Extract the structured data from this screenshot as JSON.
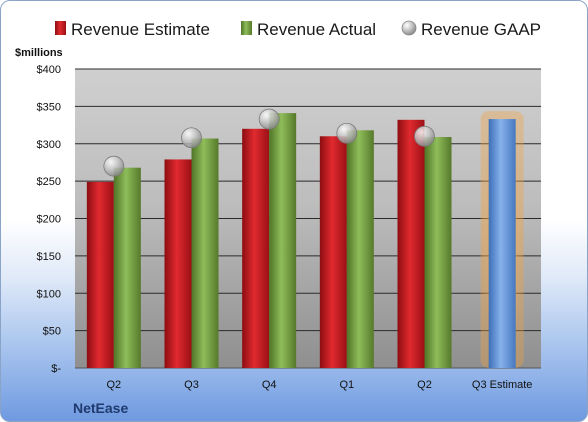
{
  "chart_data": {
    "type": "bar",
    "company": "NetEase",
    "unit_label": "$millions",
    "categories": [
      "Q2",
      "Q3",
      "Q4",
      "Q1",
      "Q2",
      "Q3 Estimate"
    ],
    "series": [
      {
        "name": "Revenue Estimate",
        "kind": "bar",
        "color": "#c8161d",
        "values": [
          249,
          279,
          320,
          310,
          332,
          null
        ]
      },
      {
        "name": "Revenue Actual",
        "kind": "bar",
        "color": "#6e9a3a",
        "values": [
          268,
          307,
          341,
          318,
          309,
          null
        ]
      },
      {
        "name": "Revenue GAAP",
        "kind": "marker",
        "color": "#b8b8b8",
        "values": [
          270,
          308,
          333,
          314,
          310,
          null
        ]
      }
    ],
    "estimate_bar": {
      "category_index": 5,
      "value": 333,
      "color": "#5b8fd6",
      "glow": "#f5a13a"
    },
    "yticks": [
      "$-",
      "$50",
      "$100",
      "$150",
      "$200",
      "$250",
      "$300",
      "$350",
      "$400"
    ],
    "ylim": [
      0,
      400
    ],
    "grid": true,
    "legend_position": "top"
  }
}
